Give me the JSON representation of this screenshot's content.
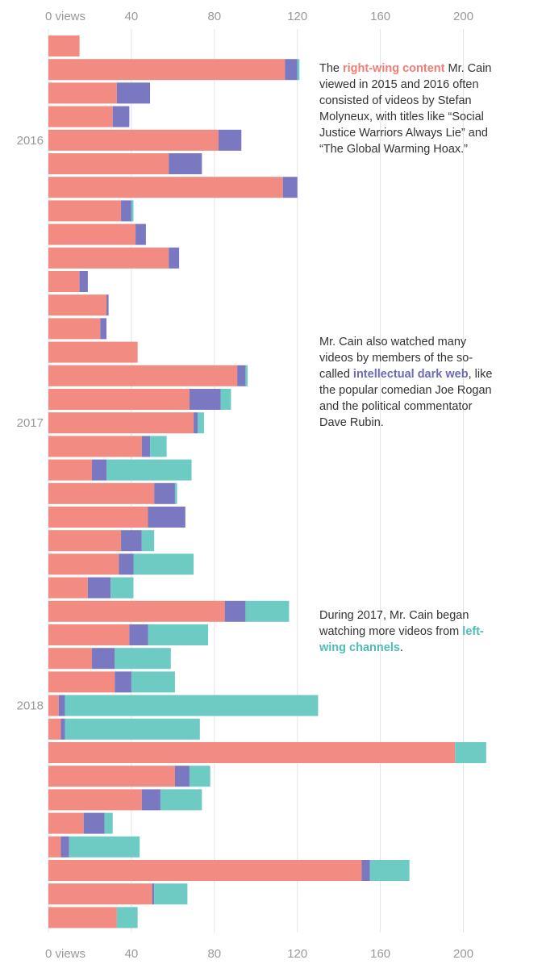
{
  "colors": {
    "right": "#f28b82",
    "idw": "#7b78c2",
    "left": "#6ecbc3",
    "tick": "#999999",
    "grid": "#e3e3e3"
  },
  "chart_data": {
    "type": "bar",
    "orientation": "horizontal",
    "stacked": true,
    "axis": {
      "min": 0,
      "max": 220,
      "ticks": [
        0,
        40,
        80,
        120,
        160,
        200
      ],
      "first_tick_label": "0 views"
    },
    "year_labels": [
      {
        "label": "2016",
        "row": 4
      },
      {
        "label": "2017",
        "row": 16
      },
      {
        "label": "2018",
        "row": 28
      }
    ],
    "series": [
      {
        "name": "Right-wing content",
        "color_key": "right",
        "values": [
          15,
          114,
          33,
          31,
          82,
          58,
          113,
          35,
          42,
          58,
          15,
          28,
          25,
          43,
          91,
          68,
          70,
          45,
          21,
          51,
          48,
          35,
          34,
          19,
          85,
          39,
          21,
          32,
          5,
          6,
          196,
          61,
          45,
          17,
          6,
          151,
          50,
          33
        ]
      },
      {
        "name": "Intellectual dark web",
        "color_key": "idw",
        "values": [
          0,
          6,
          16,
          8,
          11,
          16,
          7,
          5,
          5,
          5,
          4,
          1,
          3,
          0,
          4,
          15,
          2,
          4,
          7,
          10,
          18,
          10,
          7,
          11,
          10,
          9,
          11,
          8,
          3,
          2,
          0,
          7,
          9,
          10,
          4,
          4,
          1,
          0
        ]
      },
      {
        "name": "Left-wing channels",
        "color_key": "left",
        "values": [
          0,
          1,
          0,
          0,
          0,
          0,
          0,
          1,
          0,
          0,
          0,
          0,
          0,
          0,
          1,
          5,
          3,
          8,
          41,
          1,
          0,
          6,
          29,
          11,
          21,
          29,
          27,
          21,
          122,
          65,
          15,
          10,
          20,
          4,
          34,
          19,
          16,
          10
        ]
      }
    ]
  },
  "annotations": [
    {
      "pre": "The ",
      "highlight": "right-wing content",
      "color_key": "right",
      "post": " Mr. Cain viewed in 2015 and 2016 often consisted of videos by Stefan Molyneux, with titles like “Social Justice Warriors Always Lie” and “The Global Warming Hoax.”"
    },
    {
      "pre": "Mr. Cain also watched many videos by members of the so-called ",
      "highlight": "intellectual dark web",
      "color_key": "idw",
      "post": ", like the popular comedian Joe Rogan and the political commentator Dave Rubin."
    },
    {
      "pre": "During 2017, Mr. Cain began watching more videos from ",
      "highlight": "left-wing channels",
      "color_key": "left",
      "post": "."
    }
  ]
}
